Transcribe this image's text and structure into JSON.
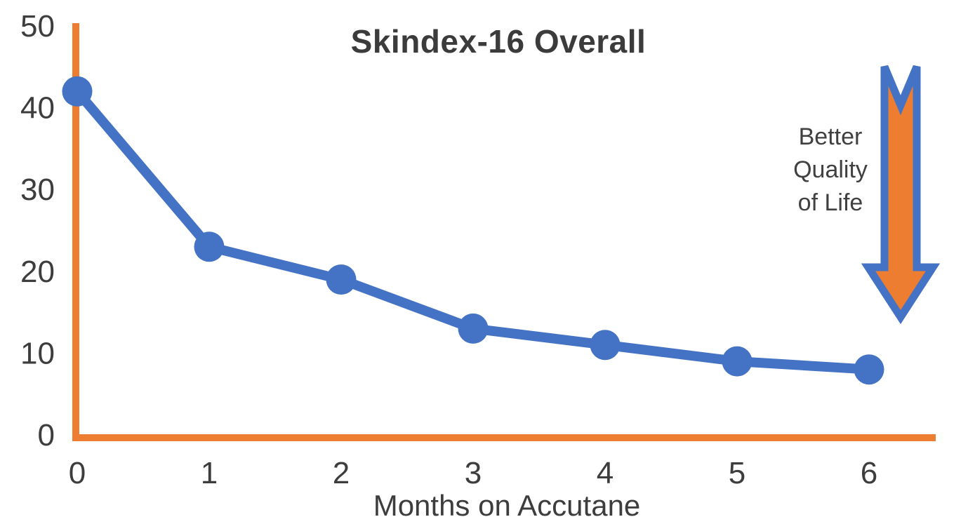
{
  "chart_data": {
    "type": "line",
    "title": "Skindex-16 Overall",
    "xlabel": "Months on Accutane",
    "ylabel": "",
    "categories": [
      "0",
      "1",
      "2",
      "3",
      "4",
      "5",
      "6"
    ],
    "series": [
      {
        "name": "Skindex-16 Overall",
        "values": [
          42,
          23,
          19,
          13,
          11,
          9,
          8
        ]
      }
    ],
    "ylim": [
      0,
      50
    ],
    "yticks": [
      0,
      10,
      20,
      30,
      40,
      50
    ],
    "grid": false,
    "legend_position": "none",
    "line_color": "#4472C4",
    "marker_color": "#4472C4",
    "axis_color": "#ED7D31",
    "tick_text_color": "#3d3d3d",
    "annotation": {
      "lines": [
        "Better",
        "Quality",
        "of Life"
      ],
      "arrow_direction": "down",
      "arrow_fill": "#ED7D31",
      "arrow_stroke": "#4472C4"
    }
  }
}
